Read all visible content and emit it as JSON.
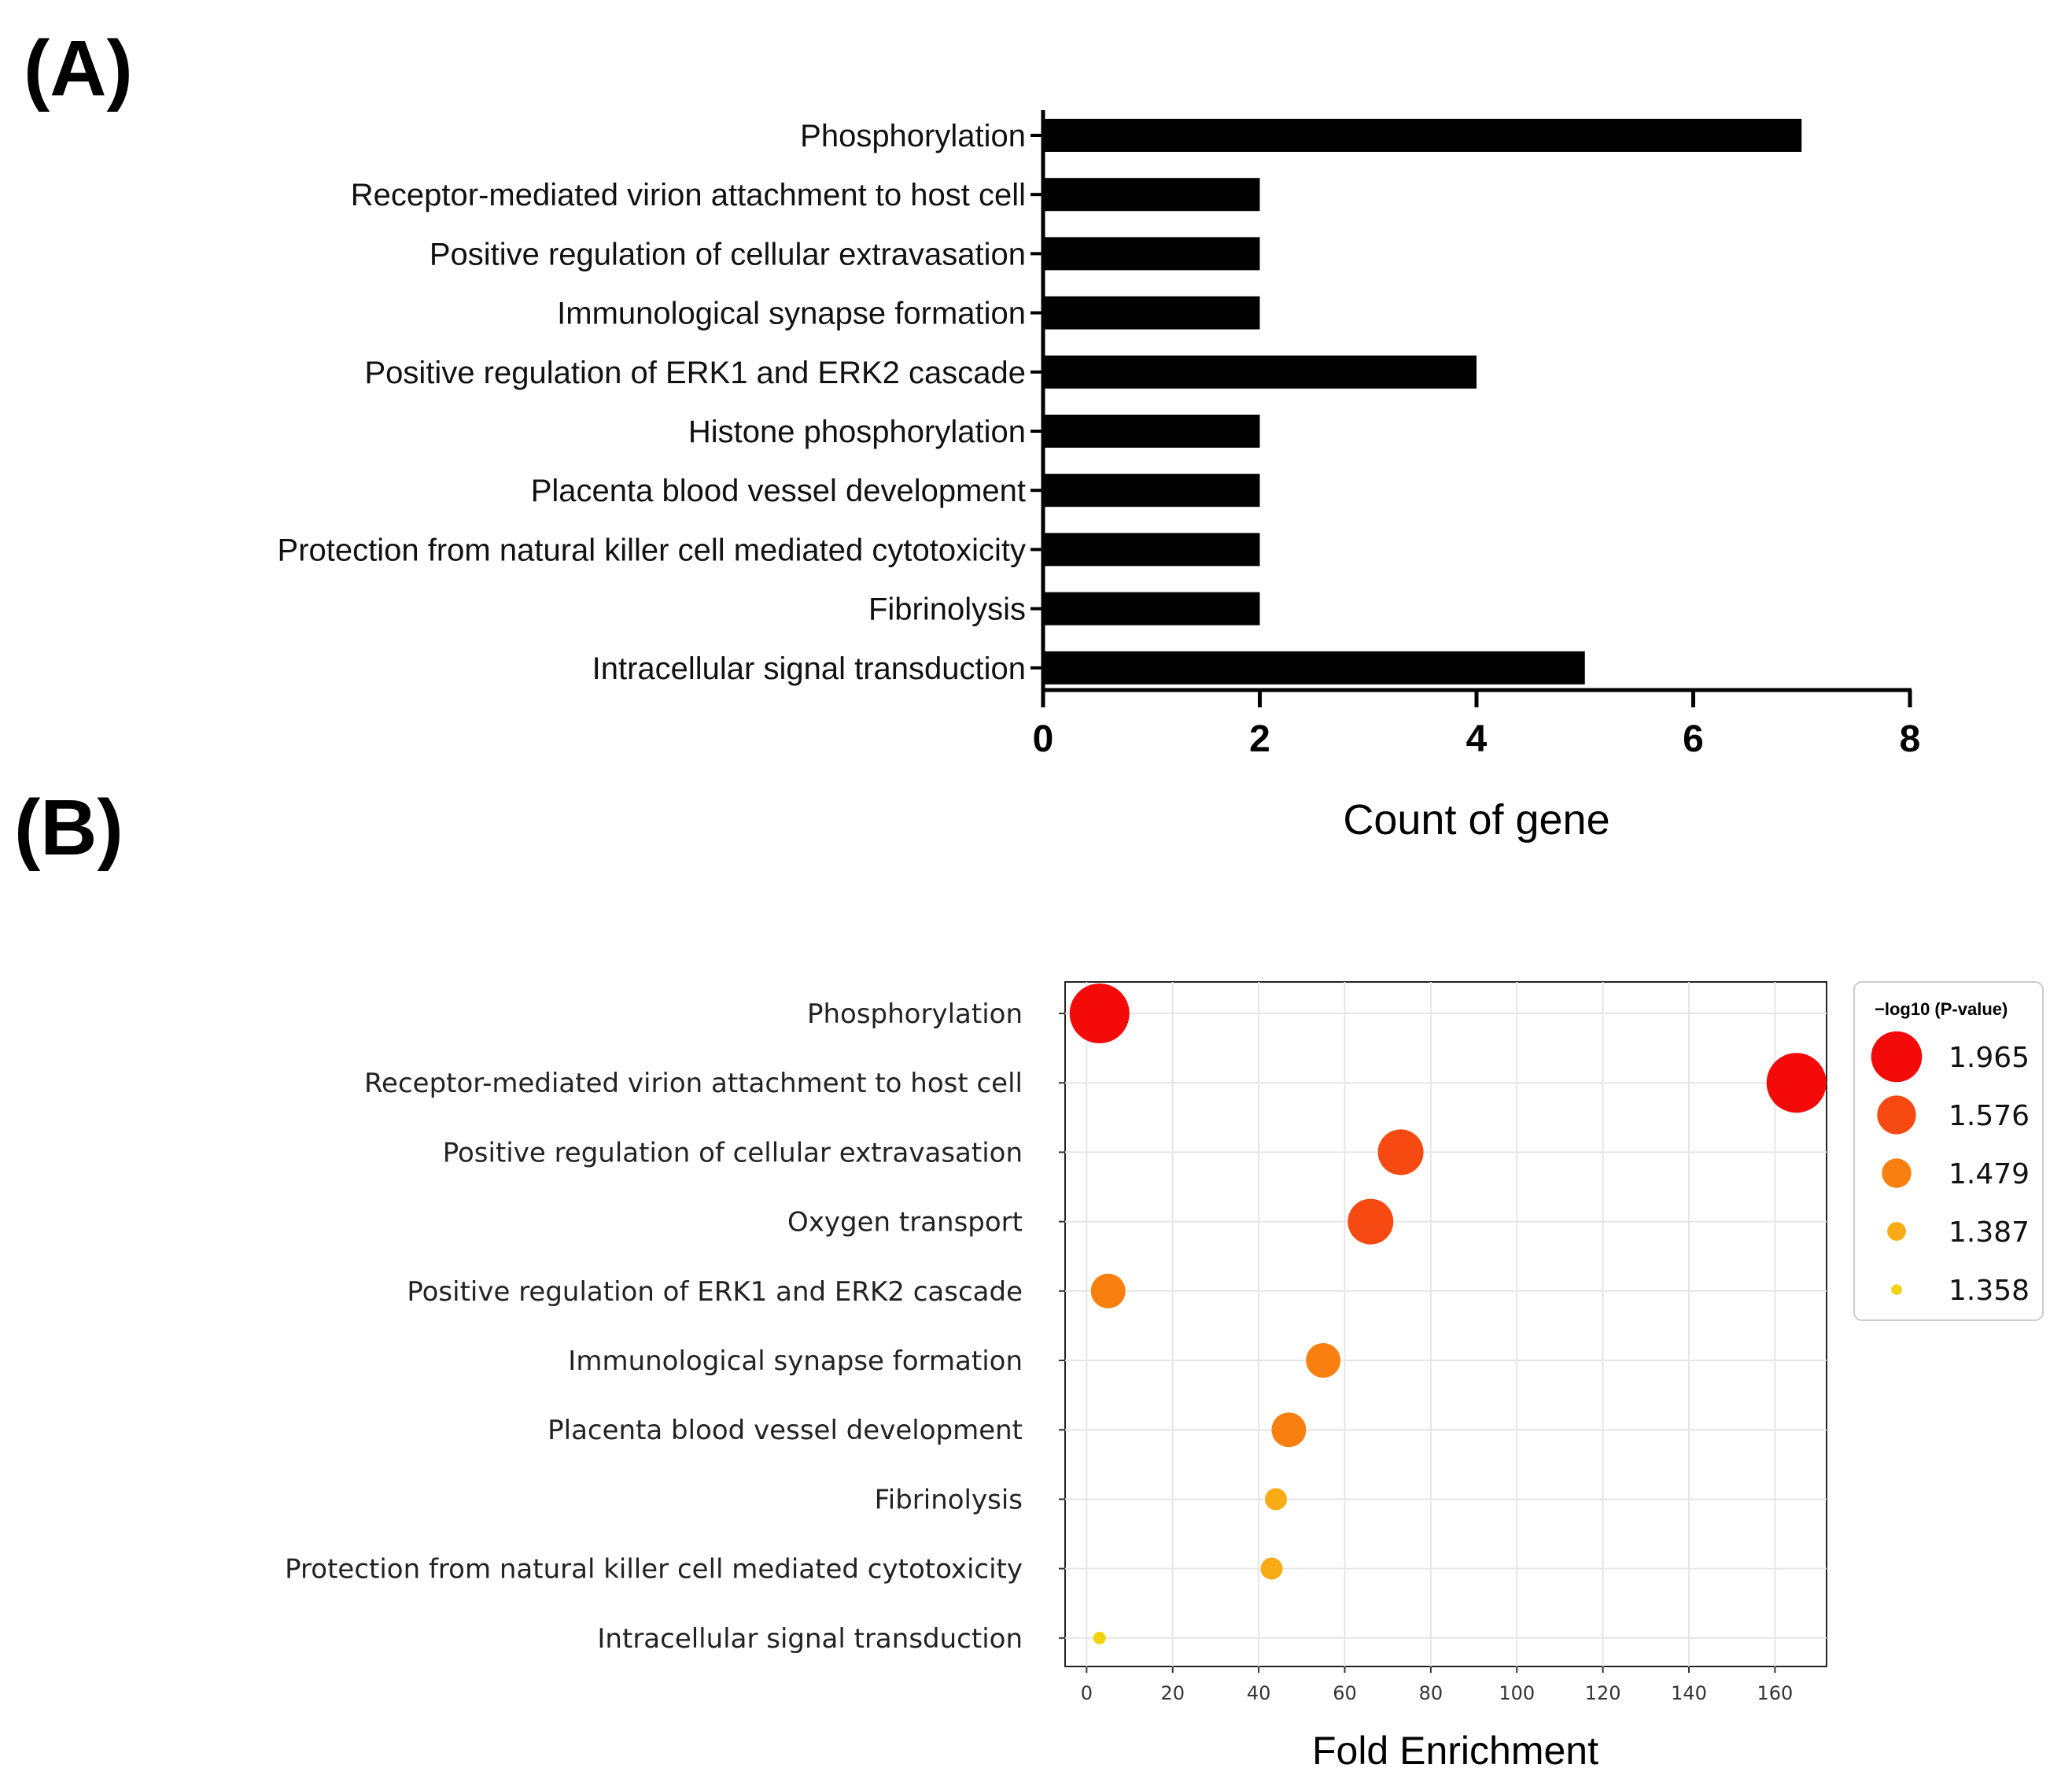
{
  "panels": {
    "a": "(A)",
    "b": "(B)"
  },
  "chart_data": [
    {
      "type": "bar",
      "orientation": "horizontal",
      "categories": [
        "Phosphorylation",
        "Receptor-mediated virion attachment to host cell",
        "Positive regulation of cellular extravasation",
        "Immunological synapse formation",
        "Positive regulation of ERK1 and ERK2 cascade",
        "Histone phosphorylation",
        "Placenta blood vessel development",
        "Protection from natural killer cell mediated cytotoxicity",
        "Fibrinolysis",
        "Intracellular signal transduction"
      ],
      "values": [
        7,
        2,
        2,
        2,
        4,
        2,
        2,
        2,
        2,
        5
      ],
      "xlabel": "Count of gene",
      "xlim": [
        0,
        8
      ],
      "xticks": [
        "0",
        "2",
        "4",
        "6",
        "8"
      ],
      "bar_color": "#000000"
    },
    {
      "type": "scatter",
      "subtype": "bubble",
      "categories": [
        "Phosphorylation",
        "Receptor-mediated virion attachment to host cell",
        "Positive regulation of cellular extravasation",
        "Oxygen transport",
        "Positive regulation of ERK1 and ERK2 cascade",
        "Immunological synapse formation",
        "Placenta blood vessel development",
        "Fibrinolysis",
        "Protection from natural killer cell mediated cytotoxicity",
        "Intracellular signal transduction"
      ],
      "x": [
        3,
        165,
        73,
        66,
        5,
        55,
        47,
        44,
        43,
        3
      ],
      "neg_log10_p": [
        1.965,
        1.965,
        1.576,
        1.576,
        1.479,
        1.479,
        1.479,
        1.387,
        1.387,
        1.358
      ],
      "xlabel": "Fold Enrichment",
      "xlim": [
        -5,
        172
      ],
      "xticks": [
        "0",
        "20",
        "40",
        "60",
        "80",
        "100",
        "120",
        "140",
        "160"
      ],
      "grid": true,
      "legend": {
        "title": "−log10 (P-value)",
        "placement": "right",
        "entries": [
          "1.965",
          "1.576",
          "1.479",
          "1.387",
          "1.358"
        ],
        "colors": [
          "#f50a0a",
          "#f64a12",
          "#f87f10",
          "#f8ab15",
          "#f5d210"
        ]
      }
    }
  ]
}
